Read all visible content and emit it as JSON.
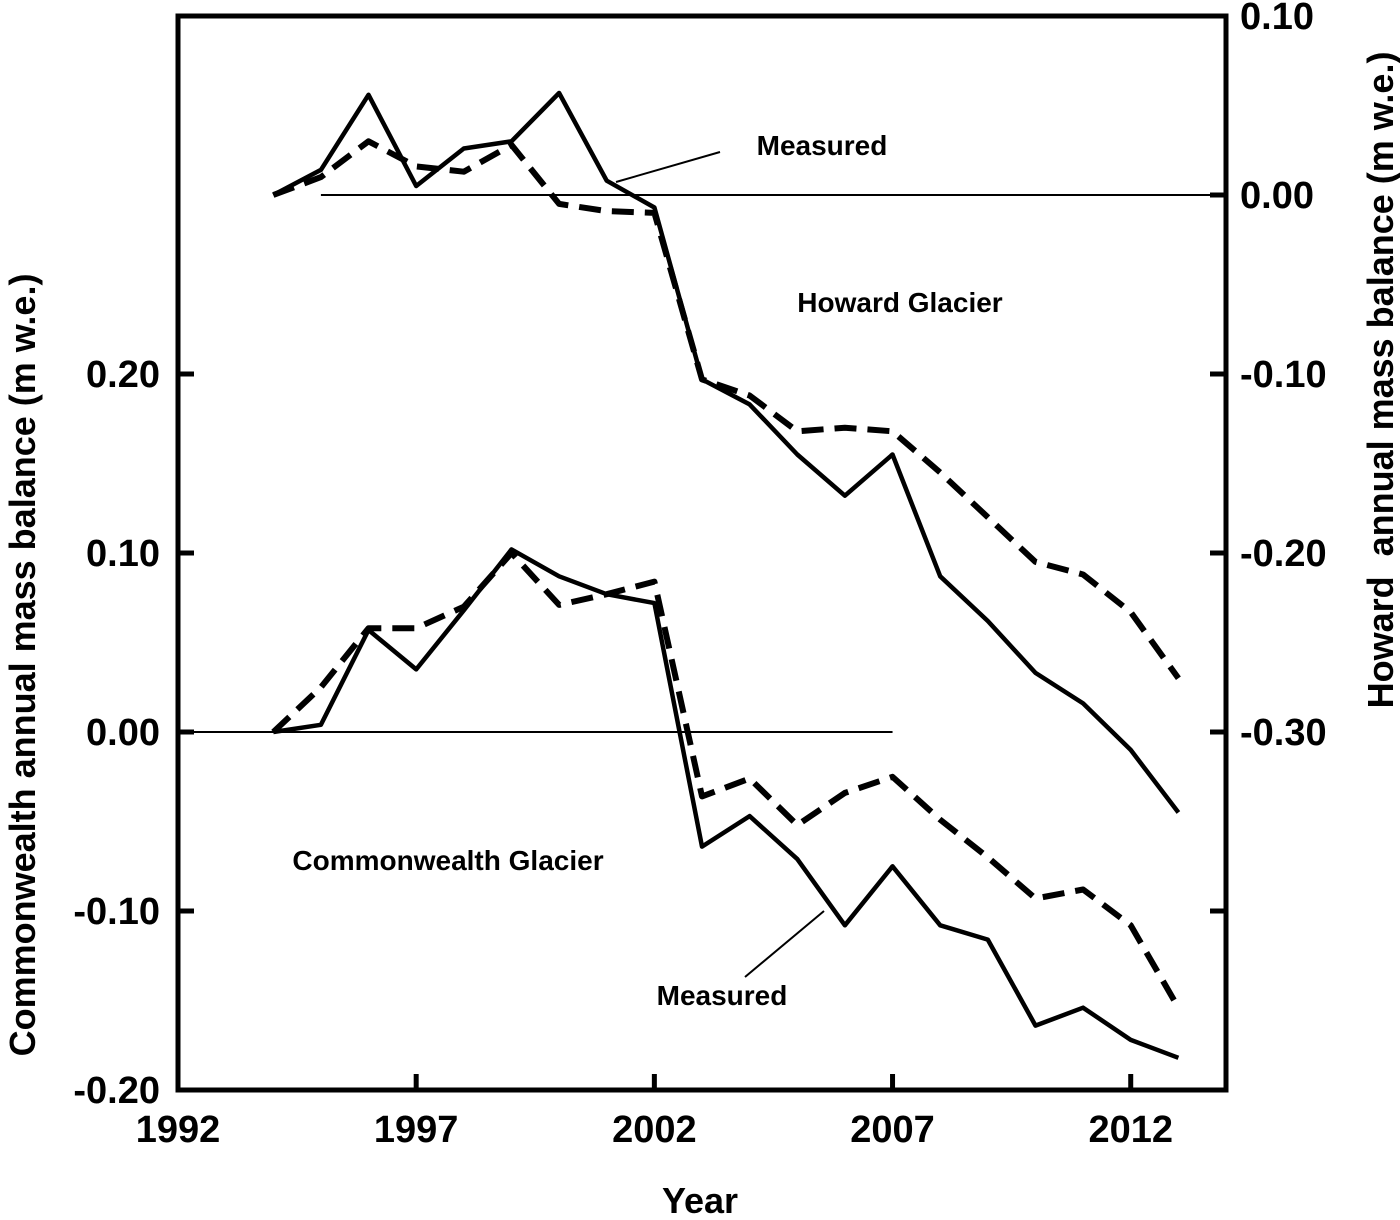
{
  "chart_data": {
    "type": "line",
    "xlabel": "Year",
    "ylabel_left": "Commonwealth annual mass balance (m w.e.)",
    "ylabel_right": "Howard  annual mass balance (m w.e.)",
    "xlim": [
      1992,
      2014
    ],
    "x_ticks": [
      "1992",
      "1997",
      "2002",
      "2007",
      "2012"
    ],
    "ylim_left": [
      -0.2,
      0.4
    ],
    "ylim_right": [
      -0.5,
      0.1
    ],
    "left_ticks": [
      {
        "value": 0.2,
        "label": "0.20"
      },
      {
        "value": 0.1,
        "label": "0.10"
      },
      {
        "value": 0.0,
        "label": "0.00"
      },
      {
        "value": -0.1,
        "label": "-0.10"
      },
      {
        "value": -0.2,
        "label": "-0.20"
      }
    ],
    "right_ticks": [
      {
        "value": 0.1,
        "label": "0.10"
      },
      {
        "value": 0.0,
        "label": "0.00"
      },
      {
        "value": -0.1,
        "label": "-0.10"
      },
      {
        "value": -0.2,
        "label": "-0.20"
      },
      {
        "value": -0.3,
        "label": "-0.30"
      },
      {
        "value": -0.4,
        "label": ""
      }
    ],
    "annotations": {
      "howard_measured": "Measured",
      "howard_title": "Howard Glacier",
      "commonwealth_title": "Commonwealth Glacier",
      "commonwealth_measured": "Measured"
    },
    "x": [
      1994,
      1995,
      1996,
      1997,
      1998,
      1999,
      2000,
      2001,
      2002,
      2003,
      2004,
      2005,
      2006,
      2007,
      2008,
      2009,
      2010,
      2011,
      2012,
      2013
    ],
    "series": [
      {
        "glacier": "Howard",
        "axis": "right",
        "style": "solid",
        "values": [
          0.0,
          0.014,
          0.056,
          0.005,
          0.026,
          0.03,
          0.057,
          0.008,
          -0.007,
          -0.103,
          -0.117,
          -0.145,
          -0.168,
          -0.145,
          -0.213,
          -0.238,
          -0.267,
          -0.284,
          -0.31,
          -0.345
        ]
      },
      {
        "glacier": "Howard",
        "axis": "right",
        "style": "dashed",
        "values": [
          0.0,
          0.01,
          0.03,
          0.016,
          0.013,
          0.028,
          -0.005,
          -0.009,
          -0.01,
          -0.103,
          -0.112,
          -0.132,
          -0.13,
          -0.132,
          -0.155,
          -0.18,
          -0.205,
          -0.212,
          -0.233,
          -0.27
        ]
      },
      {
        "glacier": "Commonwealth",
        "axis": "left",
        "style": "solid",
        "values": [
          0.0,
          0.004,
          0.057,
          0.035,
          0.068,
          0.102,
          0.087,
          0.077,
          0.072,
          -0.064,
          -0.047,
          -0.071,
          -0.108,
          -0.075,
          -0.108,
          -0.116,
          -0.164,
          -0.154,
          -0.172,
          -0.182
        ]
      },
      {
        "glacier": "Commonwealth",
        "axis": "left",
        "style": "dashed",
        "values": [
          0.0,
          0.025,
          0.058,
          0.058,
          0.07,
          0.1,
          0.071,
          0.077,
          0.084,
          -0.036,
          -0.026,
          -0.052,
          -0.034,
          -0.025,
          -0.049,
          -0.07,
          -0.093,
          -0.088,
          -0.108,
          -0.154
        ]
      }
    ],
    "zero_lines": [
      {
        "axis": "right",
        "value": 0.0,
        "x_range": [
          1995,
          2014
        ]
      },
      {
        "axis": "left",
        "value": 0.0,
        "x_range": [
          1992,
          2007
        ]
      }
    ]
  }
}
